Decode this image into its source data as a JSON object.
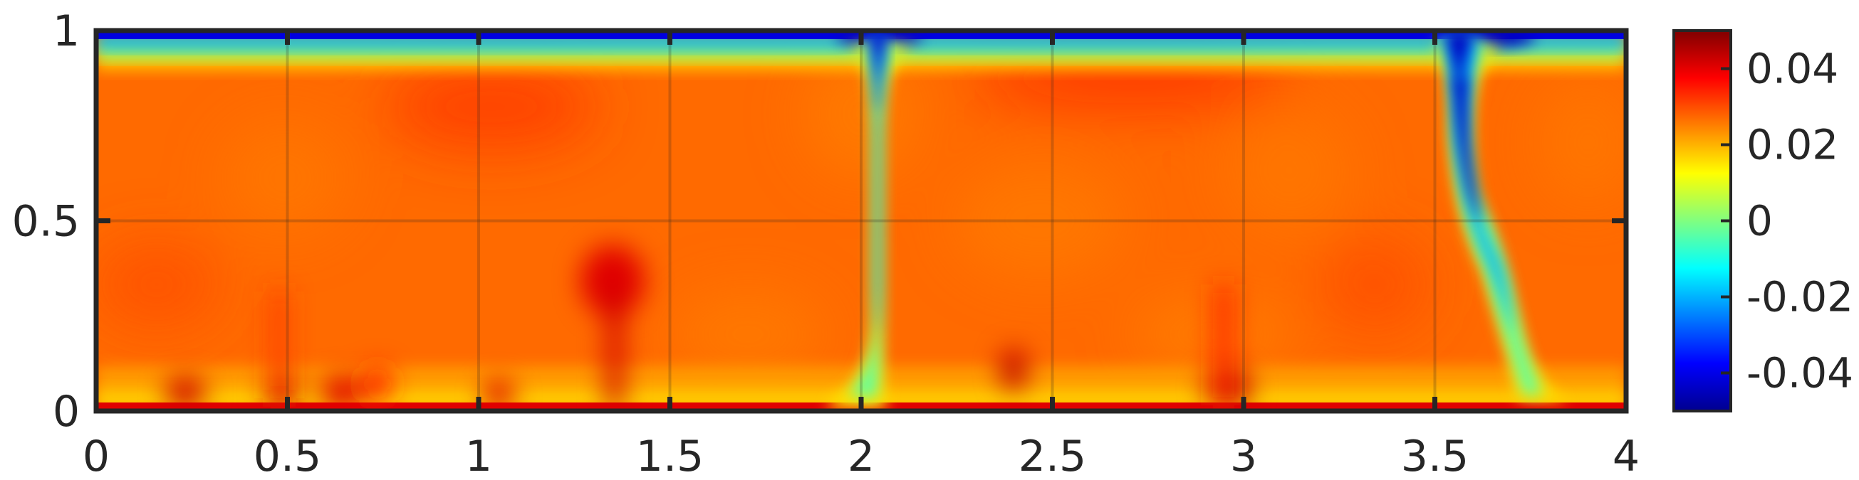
{
  "chart_data": {
    "type": "heatmap",
    "title": "",
    "xlabel": "",
    "ylabel": "",
    "xlim": [
      0,
      4
    ],
    "ylim": [
      0,
      1
    ],
    "grid": true,
    "colormap": "jet",
    "clim": [
      -0.05,
      0.05
    ],
    "x_ticks": [
      0,
      0.5,
      1,
      1.5,
      2,
      2.5,
      3,
      3.5,
      4
    ],
    "x_tick_labels": [
      "0",
      "0.5",
      "1",
      "1.5",
      "2",
      "2.5",
      "3",
      "3.5",
      "4"
    ],
    "y_ticks": [
      0,
      0.5,
      1
    ],
    "y_tick_labels": [
      "0",
      "0.5",
      "1"
    ],
    "colorbar": {
      "ticks": [
        0.04,
        0.02,
        0,
        -0.02,
        -0.04
      ],
      "tick_labels": [
        "0.04",
        "0.02",
        "0",
        "-0.02",
        "-0.04"
      ]
    },
    "background_value": 0.033,
    "features": [
      {
        "kind": "boundary_layer",
        "edge": "top",
        "value": -0.045,
        "thickness": 0.09
      },
      {
        "kind": "boundary_layer",
        "edge": "bottom",
        "value": 0.048,
        "thickness": 0.03
      },
      {
        "kind": "plume",
        "x_top": 2.0,
        "x_bottom": 1.94,
        "value": -0.04,
        "width": 0.05
      },
      {
        "kind": "plume",
        "x_top": 3.56,
        "x_mid": 3.6,
        "x_bottom": 3.7,
        "value": -0.045,
        "width": 0.06
      },
      {
        "kind": "thermal",
        "x": 1.38,
        "y": 0.36,
        "value": 0.048
      },
      {
        "kind": "thermal",
        "x": 2.97,
        "y": 0.05,
        "value": 0.048
      },
      {
        "kind": "thermal",
        "x": 2.38,
        "y": 0.1,
        "value": 0.046
      },
      {
        "kind": "thermal",
        "x": 0.48,
        "y": 0.1,
        "value": 0.045
      }
    ]
  },
  "colors": {
    "axis": "#262626",
    "background": "#ffffff"
  }
}
